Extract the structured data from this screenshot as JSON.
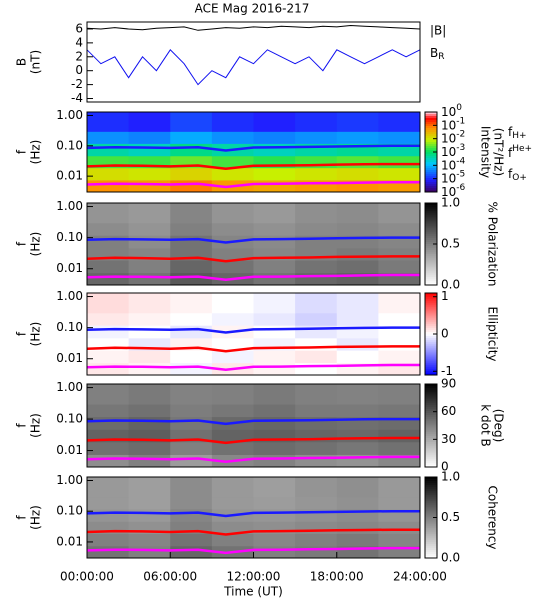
{
  "chart_data": [
    {
      "type": "line",
      "title": "ACE Mag 2016-217",
      "ylabel": [
        "B",
        "(nT)"
      ],
      "x": [
        0,
        1,
        2,
        3,
        4,
        5,
        6,
        7,
        8,
        9,
        10,
        11,
        12,
        13,
        14,
        15,
        16,
        17,
        18,
        19,
        20,
        21,
        22,
        23,
        24
      ],
      "xlim": [
        0,
        24
      ],
      "ylim": [
        -4.5,
        7
      ],
      "yticks": [
        -4,
        -2,
        0,
        2,
        4,
        6
      ],
      "series": [
        {
          "name": "|B|",
          "color": "#000000",
          "values": [
            6.1,
            6.0,
            6.2,
            6.0,
            5.9,
            6.1,
            6.2,
            6.3,
            5.8,
            6.0,
            6.2,
            6.1,
            6.3,
            6.2,
            6.4,
            6.3,
            6.2,
            6.4,
            6.3,
            6.5,
            6.4,
            6.3,
            6.2,
            6.1,
            6.0
          ]
        },
        {
          "name": "B_R",
          "color": "#1010f0",
          "values": [
            3,
            1,
            2,
            -1,
            2,
            0,
            3,
            1,
            -2,
            0,
            -1,
            2,
            1,
            3,
            2,
            1,
            2,
            0,
            3,
            2,
            1,
            2,
            3,
            2,
            3
          ]
        }
      ]
    },
    {
      "type": "spectrogram",
      "ylabel": [
        "f",
        "(Hz)"
      ],
      "log_y": true,
      "ylim": [
        0.003,
        1.3
      ],
      "yticks": [
        {
          "value": 1,
          "label": "1.00"
        },
        {
          "value": 0.1,
          "label": "0.10"
        },
        {
          "value": 0.01,
          "label": "0.01"
        }
      ],
      "xlim": [
        0,
        24
      ],
      "xbins": [
        0,
        3,
        6,
        9,
        12,
        15,
        18,
        21,
        24
      ],
      "ybins": [
        0.003,
        0.0075,
        0.019,
        0.047,
        0.12,
        0.3,
        1.3
      ],
      "z": [
        [
          0.06,
          0.05,
          0.08,
          0.05,
          0.04,
          0.05,
          0.06,
          0.05
        ],
        [
          0.012,
          0.01,
          0.015,
          0.01,
          0.008,
          0.01,
          0.012,
          0.01
        ],
        [
          0.002,
          0.0018,
          0.003,
          0.002,
          0.0015,
          0.002,
          0.0025,
          0.002
        ],
        [
          0.0004,
          0.0003,
          0.0006,
          0.0004,
          0.0003,
          0.0004,
          0.0005,
          0.0004
        ],
        [
          5e-05,
          4e-05,
          8e-05,
          5e-05,
          4e-05,
          5e-05,
          6e-05,
          5e-05
        ],
        [
          1e-05,
          8e-06,
          1.5e-05,
          1e-05,
          8e-06,
          1e-05,
          1.2e-05,
          1e-05
        ]
      ],
      "colorbar": {
        "label": [
          "Intensity",
          "(nT²/Hz)"
        ],
        "colormap": "rainbow",
        "log": true,
        "lim": [
          1e-06,
          1
        ],
        "ticks": [
          {
            "value": 1,
            "label": "10^0"
          },
          {
            "value": 0.1,
            "label": "10^-1"
          },
          {
            "value": 0.01,
            "label": "10^-2"
          },
          {
            "value": 0.001,
            "label": "10^-3"
          },
          {
            "value": 0.0001,
            "label": "10^-4"
          },
          {
            "value": 1e-05,
            "label": "10^-5"
          },
          {
            "value": 1e-06,
            "label": "10^-6"
          }
        ]
      },
      "x": [
        0,
        2,
        4,
        6,
        8,
        10,
        12,
        14,
        16,
        18,
        20,
        22,
        24
      ],
      "series": [
        {
          "name": "f_H+",
          "color": "#1a1aff",
          "label_color": "#3030c0",
          "values": [
            0.085,
            0.09,
            0.088,
            0.085,
            0.09,
            0.07,
            0.088,
            0.09,
            0.092,
            0.095,
            0.098,
            0.1,
            0.1
          ]
        },
        {
          "name": "f^He+",
          "color": "#ff0000",
          "label_color": "#e00000",
          "values": [
            0.021,
            0.0225,
            0.022,
            0.021,
            0.0225,
            0.0175,
            0.022,
            0.0225,
            0.023,
            0.024,
            0.0245,
            0.025,
            0.025
          ]
        },
        {
          "name": "f_O+",
          "color": "#ff00ff",
          "label_color": "#ff00ff",
          "values": [
            0.0053,
            0.0056,
            0.0055,
            0.0053,
            0.0056,
            0.0044,
            0.0055,
            0.0056,
            0.0058,
            0.0059,
            0.0061,
            0.0063,
            0.0063
          ]
        }
      ]
    },
    {
      "type": "spectrogram",
      "ylabel": [
        "f",
        "(Hz)"
      ],
      "log_y": true,
      "ylim": [
        0.003,
        1.3
      ],
      "yticks": [
        {
          "value": 1,
          "label": "1.00"
        },
        {
          "value": 0.1,
          "label": "0.10"
        },
        {
          "value": 0.01,
          "label": "0.01"
        }
      ],
      "xlim": [
        0,
        24
      ],
      "xbins": [
        0,
        3,
        6,
        9,
        12,
        15,
        18,
        21,
        24
      ],
      "ybins": [
        0.003,
        0.0075,
        0.019,
        0.047,
        0.12,
        0.3,
        1.3
      ],
      "z": [
        [
          0.6,
          0.55,
          0.65,
          0.6,
          0.55,
          0.6,
          0.62,
          0.58
        ],
        [
          0.55,
          0.5,
          0.6,
          0.55,
          0.5,
          0.55,
          0.57,
          0.52
        ],
        [
          0.5,
          0.48,
          0.55,
          0.5,
          0.47,
          0.5,
          0.52,
          0.5
        ],
        [
          0.5,
          0.45,
          0.55,
          0.48,
          0.46,
          0.5,
          0.5,
          0.48
        ],
        [
          0.45,
          0.42,
          0.5,
          0.45,
          0.43,
          0.46,
          0.47,
          0.45
        ],
        [
          0.42,
          0.4,
          0.48,
          0.42,
          0.4,
          0.44,
          0.45,
          0.42
        ]
      ],
      "colorbar": {
        "label": [
          "% Polarization"
        ],
        "colormap": "grey",
        "log": false,
        "lim": [
          0,
          1
        ],
        "ticks": [
          {
            "value": 0,
            "label": "0.0"
          },
          {
            "value": 0.5,
            "label": "0.5"
          },
          {
            "value": 1,
            "label": "1.0"
          }
        ]
      },
      "x": [
        0,
        2,
        4,
        6,
        8,
        10,
        12,
        14,
        16,
        18,
        20,
        22,
        24
      ],
      "series": [
        {
          "color": "#1a1aff",
          "values": [
            0.085,
            0.09,
            0.088,
            0.085,
            0.09,
            0.07,
            0.088,
            0.09,
            0.092,
            0.095,
            0.098,
            0.1,
            0.1
          ]
        },
        {
          "color": "#ff0000",
          "values": [
            0.021,
            0.0225,
            0.022,
            0.021,
            0.0225,
            0.0175,
            0.022,
            0.0225,
            0.023,
            0.024,
            0.0245,
            0.025,
            0.025
          ]
        },
        {
          "color": "#ff00ff",
          "values": [
            0.0053,
            0.0056,
            0.0055,
            0.0053,
            0.0056,
            0.0044,
            0.0055,
            0.0056,
            0.0058,
            0.0059,
            0.0061,
            0.0063,
            0.0063
          ]
        }
      ]
    },
    {
      "type": "spectrogram",
      "ylabel": [
        "f",
        "(Hz)"
      ],
      "log_y": true,
      "ylim": [
        0.003,
        1.3
      ],
      "yticks": [
        {
          "value": 1,
          "label": "1.00"
        },
        {
          "value": 0.1,
          "label": "0.10"
        },
        {
          "value": 0.01,
          "label": "0.01"
        }
      ],
      "xlim": [
        0,
        24
      ],
      "xbins": [
        0,
        3,
        6,
        9,
        12,
        15,
        18,
        21,
        24
      ],
      "ybins": [
        0.003,
        0.0075,
        0.019,
        0.047,
        0.12,
        0.3,
        1.3
      ],
      "z": [
        [
          0.1,
          0.05,
          -0.05,
          0.1,
          0.05,
          0,
          0.05,
          0.1
        ],
        [
          0.05,
          0.1,
          0,
          -0.05,
          0.05,
          0.1,
          0,
          0.05
        ],
        [
          0,
          -0.1,
          0.05,
          0,
          -0.05,
          0,
          -0.1,
          0
        ],
        [
          -0.05,
          0,
          -0.1,
          0.05,
          0,
          -0.1,
          -0.05,
          0
        ],
        [
          0.1,
          0.05,
          0,
          -0.05,
          -0.1,
          -0.2,
          -0.1,
          0
        ],
        [
          0.15,
          0.1,
          0.05,
          0,
          -0.05,
          -0.15,
          -0.1,
          0.05
        ]
      ],
      "colorbar": {
        "label": [
          "Ellipticity"
        ],
        "colormap": "bwr",
        "log": false,
        "lim": [
          -1.1,
          1.1
        ],
        "ticks": [
          1,
          0,
          -1
        ]
      },
      "x": [
        0,
        2,
        4,
        6,
        8,
        10,
        12,
        14,
        16,
        18,
        20,
        22,
        24
      ],
      "series": [
        {
          "color": "#1a1aff",
          "values": [
            0.085,
            0.09,
            0.088,
            0.085,
            0.09,
            0.07,
            0.088,
            0.09,
            0.092,
            0.095,
            0.098,
            0.1,
            0.1
          ]
        },
        {
          "color": "#ff0000",
          "values": [
            0.021,
            0.0225,
            0.022,
            0.021,
            0.0225,
            0.0175,
            0.022,
            0.0225,
            0.023,
            0.024,
            0.0245,
            0.025,
            0.025
          ]
        },
        {
          "color": "#ff00ff",
          "values": [
            0.0053,
            0.0056,
            0.0055,
            0.0053,
            0.0056,
            0.0044,
            0.0055,
            0.0056,
            0.0058,
            0.0059,
            0.0061,
            0.0063,
            0.0063
          ]
        }
      ]
    },
    {
      "type": "spectrogram",
      "ylabel": [
        "f",
        "(Hz)"
      ],
      "log_y": true,
      "ylim": [
        0.003,
        1.3
      ],
      "yticks": [
        {
          "value": 1,
          "label": "1.00"
        },
        {
          "value": 0.1,
          "label": "0.10"
        },
        {
          "value": 0.01,
          "label": "0.01"
        }
      ],
      "xlim": [
        0,
        24
      ],
      "xbins": [
        0,
        3,
        6,
        9,
        12,
        15,
        18,
        21,
        24
      ],
      "ybins": [
        0.003,
        0.0075,
        0.019,
        0.047,
        0.12,
        0.3,
        1.3
      ],
      "z": [
        [
          40,
          45,
          35,
          42,
          44,
          40,
          38,
          42
        ],
        [
          50,
          52,
          45,
          50,
          52,
          50,
          48,
          50
        ],
        [
          55,
          57,
          50,
          55,
          56,
          54,
          53,
          55
        ],
        [
          52,
          55,
          48,
          53,
          54,
          52,
          51,
          52
        ],
        [
          48,
          50,
          46,
          48,
          50,
          47,
          47,
          48
        ],
        [
          45,
          47,
          44,
          45,
          47,
          45,
          44,
          45
        ]
      ],
      "colorbar": {
        "label": [
          "k dot B",
          "(Deg)"
        ],
        "colormap": "grey",
        "log": false,
        "lim": [
          0,
          90
        ],
        "ticks": [
          0,
          30,
          60,
          90
        ]
      },
      "x": [
        0,
        2,
        4,
        6,
        8,
        10,
        12,
        14,
        16,
        18,
        20,
        22,
        24
      ],
      "series": [
        {
          "color": "#1a1aff",
          "values": [
            0.085,
            0.09,
            0.088,
            0.085,
            0.09,
            0.07,
            0.088,
            0.09,
            0.092,
            0.095,
            0.098,
            0.1,
            0.1
          ]
        },
        {
          "color": "#ff0000",
          "values": [
            0.021,
            0.0225,
            0.022,
            0.021,
            0.0225,
            0.0175,
            0.022,
            0.0225,
            0.023,
            0.024,
            0.0245,
            0.025,
            0.025
          ]
        },
        {
          "color": "#ff00ff",
          "values": [
            0.0053,
            0.0056,
            0.0055,
            0.0053,
            0.0056,
            0.0044,
            0.0055,
            0.0056,
            0.0058,
            0.0059,
            0.0061,
            0.0063,
            0.0063
          ]
        }
      ]
    },
    {
      "type": "spectrogram",
      "ylabel": [
        "f",
        "(Hz)"
      ],
      "log_y": true,
      "ylim": [
        0.003,
        1.3
      ],
      "yticks": [
        {
          "value": 1,
          "label": "1.00"
        },
        {
          "value": 0.1,
          "label": "0.10"
        },
        {
          "value": 0.01,
          "label": "0.01"
        }
      ],
      "xlim": [
        0,
        24
      ],
      "xbins": [
        0,
        3,
        6,
        9,
        12,
        15,
        18,
        21,
        24
      ],
      "ybins": [
        0.003,
        0.0075,
        0.019,
        0.047,
        0.12,
        0.3,
        1.3
      ],
      "z": [
        [
          0.55,
          0.5,
          0.6,
          0.55,
          0.5,
          0.52,
          0.55,
          0.5
        ],
        [
          0.5,
          0.48,
          0.55,
          0.5,
          0.47,
          0.5,
          0.52,
          0.48
        ],
        [
          0.45,
          0.43,
          0.5,
          0.45,
          0.44,
          0.46,
          0.47,
          0.45
        ],
        [
          0.42,
          0.4,
          0.48,
          0.42,
          0.41,
          0.43,
          0.45,
          0.42
        ],
        [
          0.4,
          0.38,
          0.45,
          0.4,
          0.39,
          0.41,
          0.43,
          0.4
        ],
        [
          0.4,
          0.38,
          0.45,
          0.4,
          0.38,
          0.42,
          0.44,
          0.4
        ]
      ],
      "colorbar": {
        "label": [
          "Coherency"
        ],
        "colormap": "grey",
        "log": false,
        "lim": [
          0,
          1
        ],
        "ticks": [
          {
            "value": 0,
            "label": "0.0"
          },
          {
            "value": 0.5,
            "label": "0.5"
          },
          {
            "value": 1,
            "label": "1.0"
          }
        ]
      },
      "x": [
        0,
        2,
        4,
        6,
        8,
        10,
        12,
        14,
        16,
        18,
        20,
        22,
        24
      ],
      "series": [
        {
          "color": "#1a1aff",
          "values": [
            0.085,
            0.09,
            0.088,
            0.085,
            0.09,
            0.07,
            0.088,
            0.09,
            0.092,
            0.095,
            0.098,
            0.1,
            0.1
          ]
        },
        {
          "color": "#ff0000",
          "values": [
            0.021,
            0.0225,
            0.022,
            0.021,
            0.0225,
            0.0175,
            0.022,
            0.0225,
            0.023,
            0.024,
            0.0245,
            0.025,
            0.025
          ]
        },
        {
          "color": "#ff00ff",
          "values": [
            0.0053,
            0.0056,
            0.0055,
            0.0053,
            0.0056,
            0.0044,
            0.0055,
            0.0056,
            0.0058,
            0.0059,
            0.0061,
            0.0063,
            0.0063
          ]
        }
      ],
      "xlabel": "Time (UT)",
      "xticks": [
        {
          "value": 0,
          "label": "00:00:00"
        },
        {
          "value": 6,
          "label": "06:00:00"
        },
        {
          "value": 12,
          "label": "12:00:00"
        },
        {
          "value": 18,
          "label": "18:00:00"
        },
        {
          "value": 24,
          "label": "24:00:00"
        }
      ]
    }
  ]
}
